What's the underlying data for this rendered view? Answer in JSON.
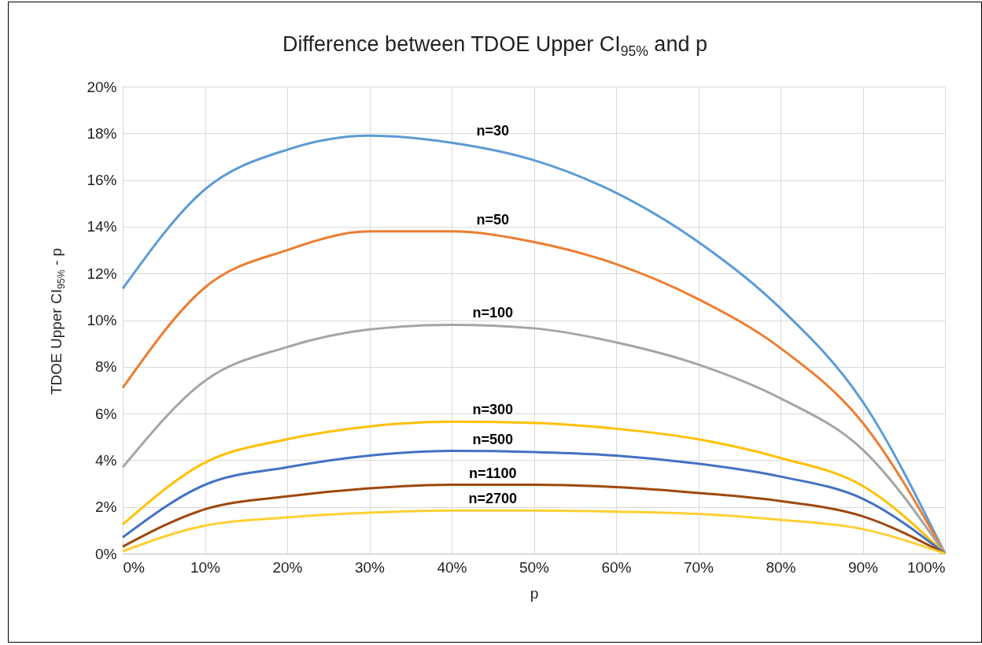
{
  "chart_data": {
    "type": "line",
    "title": "Difference between TDOE Upper CI$_{95%}$ and p",
    "xlabel": "p",
    "ylabel": "TDOE Upper CI$_{95%}$ - p",
    "x": [
      0,
      10,
      20,
      30,
      40,
      50,
      60,
      70,
      80,
      90,
      100
    ],
    "xlim": [
      0,
      100
    ],
    "xticks": [
      {
        "value": 0,
        "label": "0%"
      },
      {
        "value": 10,
        "label": "10%"
      },
      {
        "value": 20,
        "label": "20%"
      },
      {
        "value": 30,
        "label": "30%"
      },
      {
        "value": 40,
        "label": "40%"
      },
      {
        "value": 50,
        "label": "50%"
      },
      {
        "value": 60,
        "label": "60%"
      },
      {
        "value": 70,
        "label": "70%"
      },
      {
        "value": 80,
        "label": "80%"
      },
      {
        "value": 90,
        "label": "90%"
      },
      {
        "value": 100,
        "label": "100%"
      }
    ],
    "ylim": [
      0,
      20
    ],
    "yticks": [
      {
        "value": 0,
        "label": "0%"
      },
      {
        "value": 2,
        "label": "2%"
      },
      {
        "value": 4,
        "label": "4%"
      },
      {
        "value": 6,
        "label": "6%"
      },
      {
        "value": 8,
        "label": "8%"
      },
      {
        "value": 10,
        "label": "10%"
      },
      {
        "value": 12,
        "label": "12%"
      },
      {
        "value": 14,
        "label": "14%"
      },
      {
        "value": 16,
        "label": "16%"
      },
      {
        "value": 18,
        "label": "18%"
      },
      {
        "value": 20,
        "label": "20%"
      }
    ],
    "grid": true,
    "legend": false,
    "marker": "none",
    "line_style": "solid",
    "series": [
      {
        "name": "n=30",
        "color": "#5b9bd5",
        "values": [
          11.35,
          15.6,
          17.3,
          17.9,
          17.6,
          16.85,
          15.45,
          13.35,
          10.5,
          6.5,
          0
        ]
      },
      {
        "name": "n=50",
        "color": "#ed7d31",
        "values": [
          7.1,
          11.4,
          13.0,
          13.8,
          13.8,
          13.35,
          12.4,
          10.9,
          8.8,
          5.6,
          0
        ]
      },
      {
        "name": "n=100",
        "color": "#a5a5a5",
        "values": [
          3.7,
          7.4,
          8.85,
          9.6,
          9.8,
          9.65,
          9.05,
          8.1,
          6.65,
          4.45,
          0
        ]
      },
      {
        "name": "n=300",
        "color": "#ffc000",
        "values": [
          1.25,
          3.9,
          4.9,
          5.45,
          5.65,
          5.6,
          5.35,
          4.9,
          4.1,
          2.9,
          0
        ]
      },
      {
        "name": "n=500",
        "color": "#4472c4",
        "values": [
          0.7,
          2.95,
          3.7,
          4.2,
          4.4,
          4.35,
          4.2,
          3.85,
          3.3,
          2.35,
          0
        ]
      },
      {
        "name": "n=1100",
        "color": "#9e480e",
        "values": [
          0.3,
          1.9,
          2.45,
          2.8,
          2.95,
          2.95,
          2.85,
          2.6,
          2.25,
          1.6,
          0
        ]
      },
      {
        "name": "n=2700",
        "color": "#ffd034",
        "values": [
          0.1,
          1.2,
          1.55,
          1.75,
          1.85,
          1.85,
          1.8,
          1.7,
          1.45,
          1.05,
          0
        ]
      }
    ]
  }
}
